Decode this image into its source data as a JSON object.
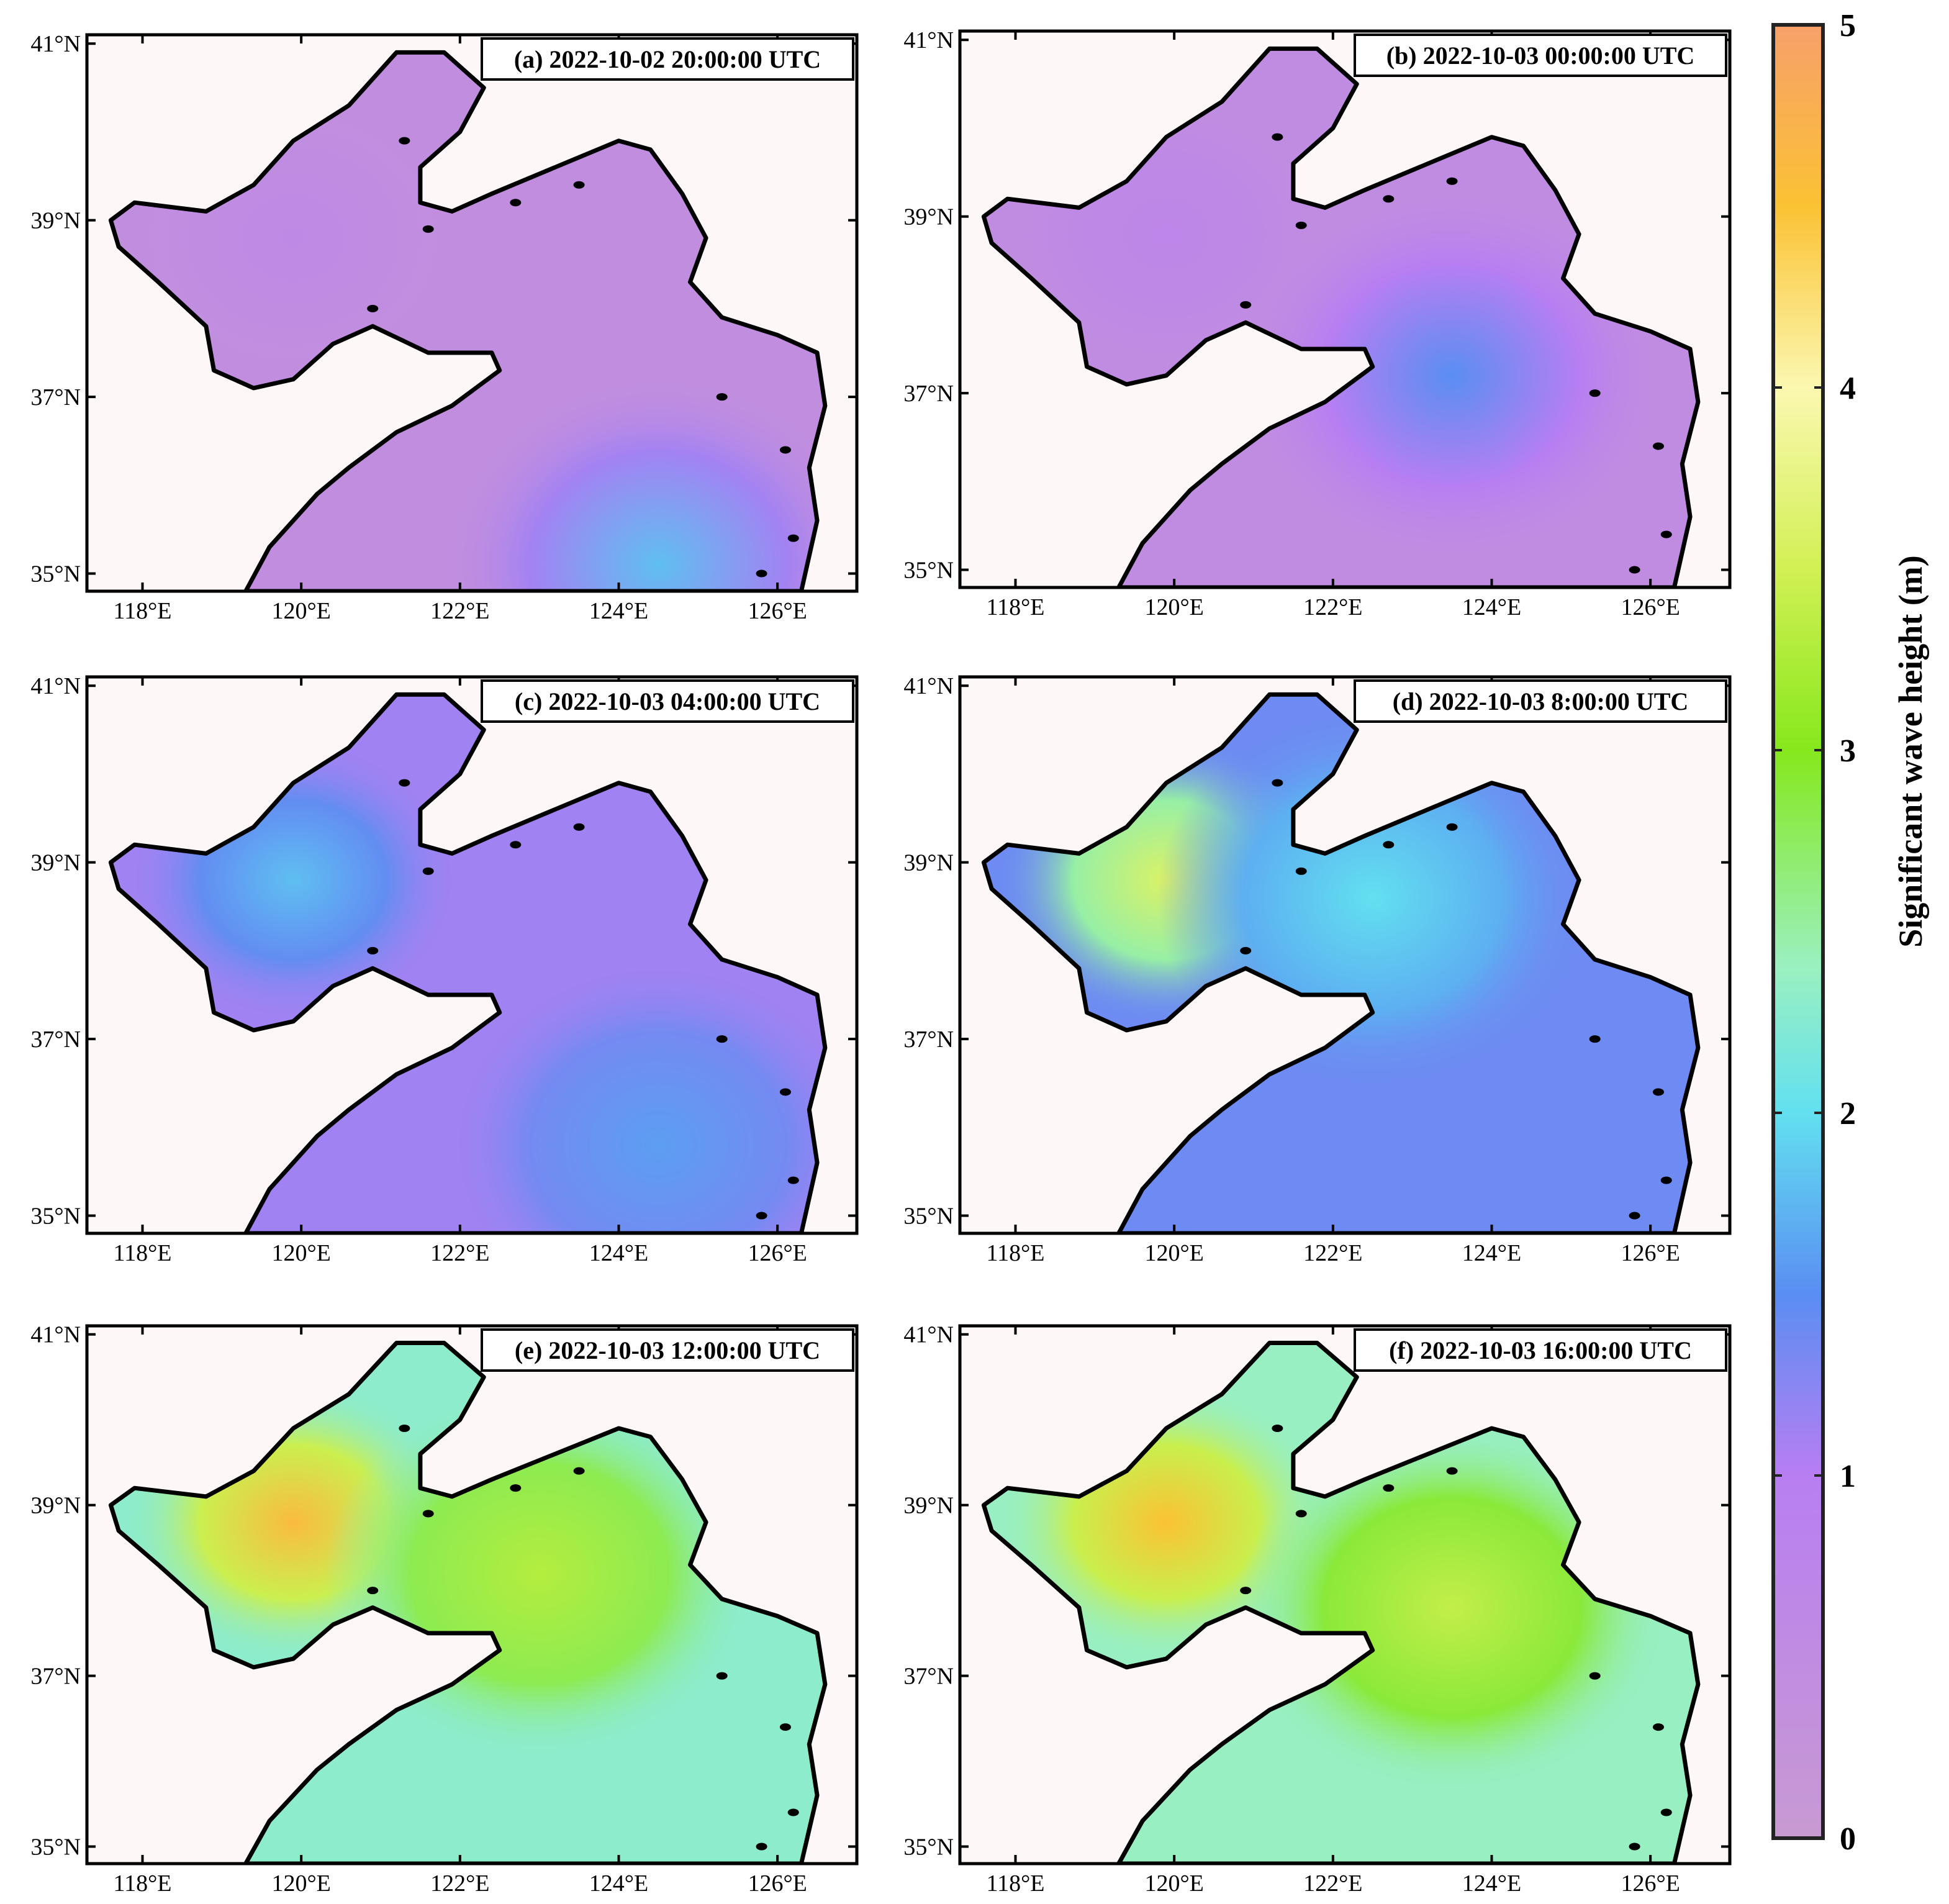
{
  "figure": {
    "panels": [
      {
        "id": "a",
        "title": "(a) 2022-10-02 20:00:00 UTC",
        "bohai_peak_m": 0.6,
        "yellow_sea_peak_m": 1.8,
        "yellow_sea_peak_lon": 124.5,
        "yellow_sea_peak_lat": 35.1
      },
      {
        "id": "b",
        "title": "(b) 2022-10-03 00:00:00 UTC",
        "bohai_peak_m": 0.7,
        "yellow_sea_peak_m": 1.5,
        "yellow_sea_peak_lon": 123.5,
        "yellow_sea_peak_lat": 37.2
      },
      {
        "id": "c",
        "title": "(c) 2022-10-03 04:00:00 UTC",
        "bohai_peak_m": 1.8,
        "yellow_sea_peak_m": 1.6,
        "yellow_sea_peak_lon": 124.5,
        "yellow_sea_peak_lat": 35.8
      },
      {
        "id": "d",
        "title": "(d) 2022-10-03 8:00:00 UTC",
        "bohai_peak_m": 3.6,
        "yellow_sea_peak_m": 2.0,
        "yellow_sea_peak_lon": 122.5,
        "yellow_sea_peak_lat": 38.6
      },
      {
        "id": "e",
        "title": "(e) 2022-10-03 12:00:00 UTC",
        "bohai_peak_m": 4.6,
        "yellow_sea_peak_m": 3.3,
        "yellow_sea_peak_lon": 123.0,
        "yellow_sea_peak_lat": 38.2
      },
      {
        "id": "f",
        "title": "(f) 2022-10-03 16:00:00 UTC",
        "bohai_peak_m": 4.5,
        "yellow_sea_peak_m": 3.4,
        "yellow_sea_peak_lon": 123.5,
        "yellow_sea_peak_lat": 37.8
      }
    ],
    "axes": {
      "x_ticks": [
        "118°E",
        "120°E",
        "122°E",
        "124°E",
        "126°E"
      ],
      "y_ticks": [
        "41°N",
        "39°N",
        "37°N",
        "35°N"
      ],
      "x_tick_values": [
        118,
        120,
        122,
        124,
        126
      ],
      "y_tick_values": [
        41,
        39,
        37,
        35
      ],
      "lon_range": [
        117.3,
        127.0
      ],
      "lat_range": [
        34.8,
        41.1
      ]
    },
    "colorbar": {
      "title": "Significant wave height (m)",
      "ticks": [
        "0",
        "1",
        "2",
        "3",
        "4",
        "5"
      ],
      "range": [
        0,
        5
      ],
      "stops": [
        {
          "v": 0.0,
          "color": "#c89ad2"
        },
        {
          "v": 1.0,
          "color": "#b87ef2"
        },
        {
          "v": 1.5,
          "color": "#5a8ef2"
        },
        {
          "v": 2.0,
          "color": "#62e0f0"
        },
        {
          "v": 2.4,
          "color": "#9af0c0"
        },
        {
          "v": 3.0,
          "color": "#86e81c"
        },
        {
          "v": 3.5,
          "color": "#d2f054"
        },
        {
          "v": 4.0,
          "color": "#fbf8b0"
        },
        {
          "v": 4.5,
          "color": "#fbc234"
        },
        {
          "v": 5.0,
          "color": "#f7a06a"
        }
      ]
    },
    "colors": {
      "land": "#fdf7f7",
      "coastline": "#000000",
      "frame": "#000000"
    }
  }
}
